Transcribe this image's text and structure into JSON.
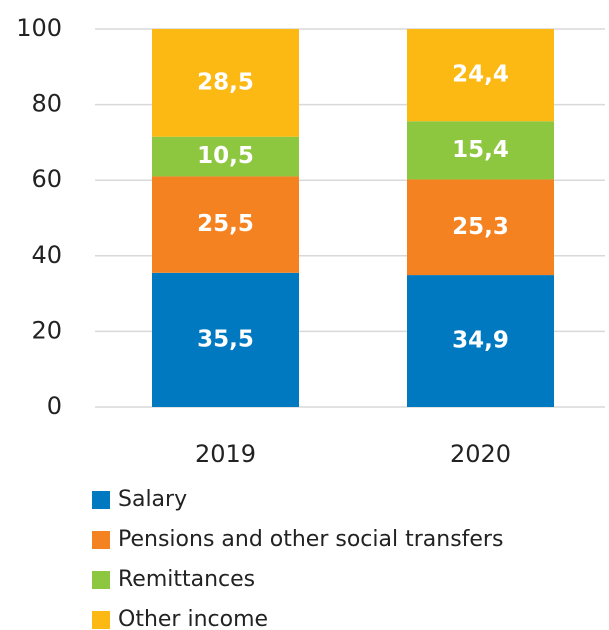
{
  "chart_data": {
    "type": "stacked_bar",
    "categories": [
      "2019",
      "2020"
    ],
    "series": [
      {
        "name": "Salary",
        "color": "#0079c1",
        "values": [
          35.5,
          34.9
        ],
        "value_labels": [
          "35,5",
          "34,9"
        ]
      },
      {
        "name": "Pensions and other social transfers",
        "color": "#f58220",
        "values": [
          25.5,
          25.3
        ],
        "value_labels": [
          "25,5",
          "25,3"
        ]
      },
      {
        "name": "Remittances",
        "color": "#8dc63f",
        "values": [
          10.5,
          15.4
        ],
        "value_labels": [
          "10,5",
          "15,4"
        ]
      },
      {
        "name": "Other income",
        "color": "#fdb913",
        "values": [
          28.5,
          24.4
        ],
        "value_labels": [
          "28,5",
          "24,4"
        ]
      }
    ],
    "ylim": [
      0,
      100
    ],
    "yticks": [
      0,
      20,
      40,
      60,
      80,
      100
    ],
    "grid": true,
    "legend": "bottom"
  }
}
